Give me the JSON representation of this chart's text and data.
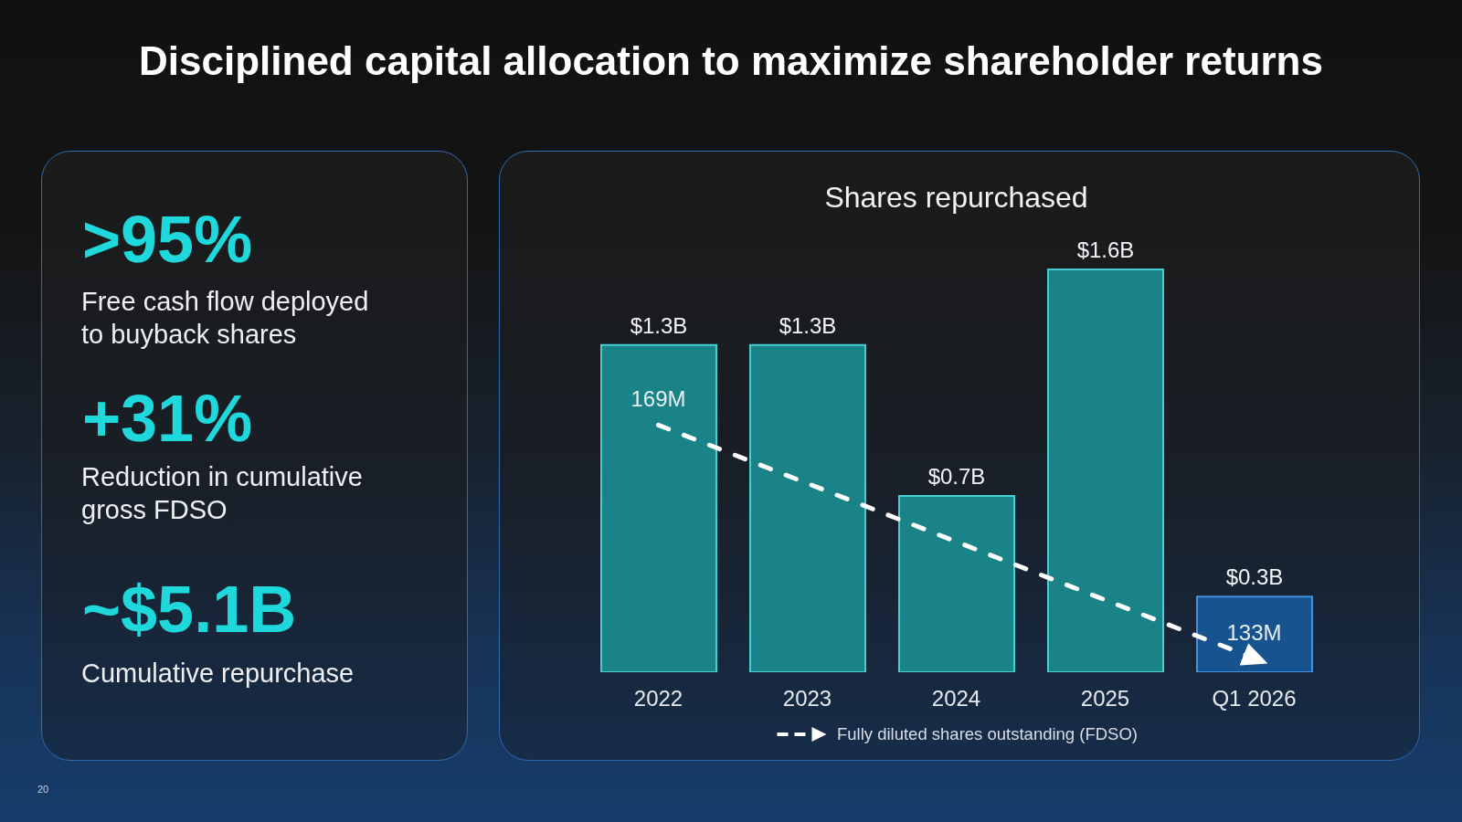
{
  "chart_data": [
    {
      "type": "other",
      "title": "Disciplined capital allocation to maximize shareholder returns",
      "annotations": [
        "20"
      ]
    },
    {
      "type": "other",
      "annotations": [
        ">95%",
        "Free cash flow deployed to buyback shares",
        "+31%",
        "Reduction in cumulative gross FDSO",
        "~$5.1B",
        "Cumulative repurchase"
      ]
    },
    {
      "type": "bar",
      "title": "Shares repurchased",
      "categories": [
        "2022",
        "2023",
        "2024",
        "2025",
        "Q1 2026"
      ],
      "series": [
        {
          "type": "bar",
          "colors": [
            "#1a8387",
            "#1a8387",
            "#1a8387",
            "#1a8387",
            "#17548f"
          ],
          "values": [
            1.3,
            1.3,
            0.7,
            1.6,
            0.3
          ],
          "value_labels": [
            "$1.3B",
            "$1.3B",
            "$0.7B",
            "$1.6B",
            "$0.3B"
          ]
        },
        {
          "type": "line",
          "name": "Fully diluted shares outstanding (FDSO)",
          "color": "#ffffff",
          "axis": "y2",
          "line_style": "dashed",
          "values": [
            169,
            null,
            null,
            null,
            133
          ],
          "value_labels": [
            "169M",
            null,
            null,
            null,
            "133M"
          ]
        }
      ],
      "legend": "bottom",
      "tick_labels": "x"
    }
  ]
}
